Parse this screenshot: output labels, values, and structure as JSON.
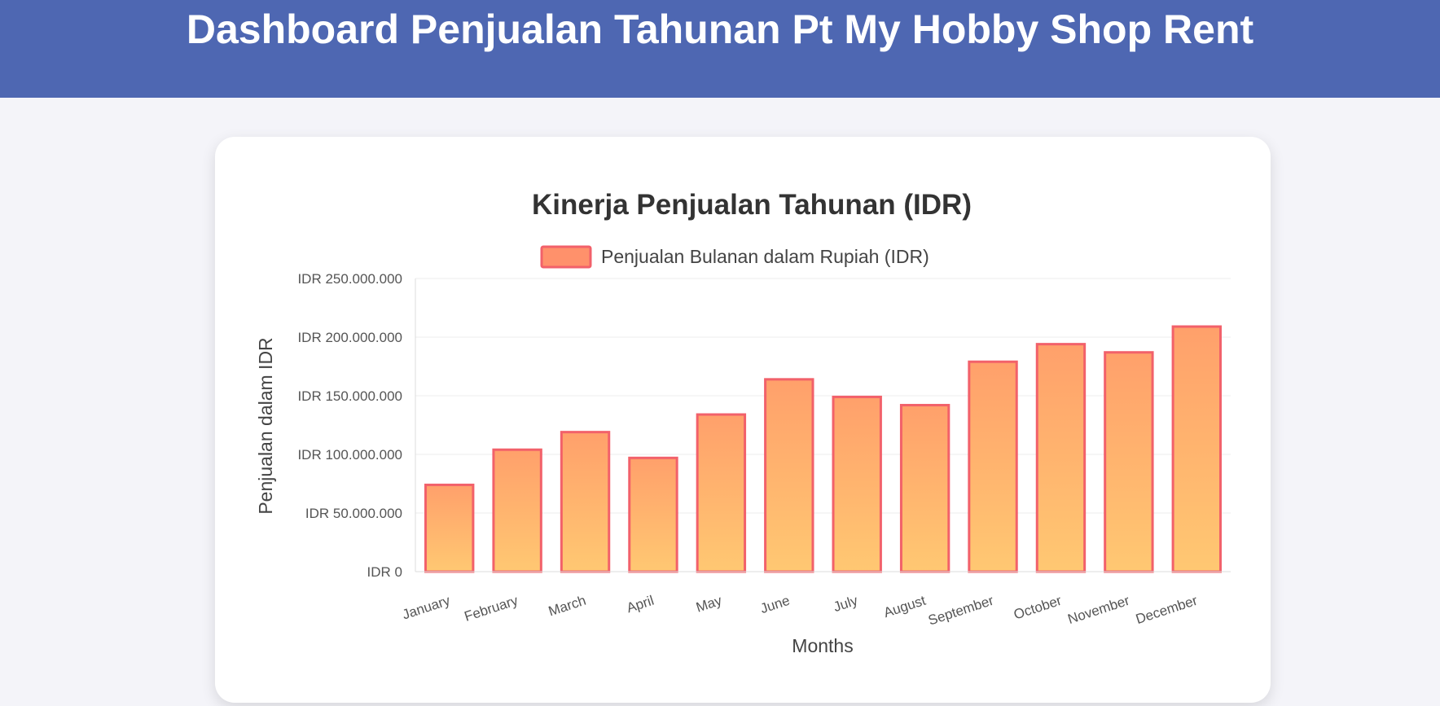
{
  "header": {
    "title": "Dashboard Penjualan Tahunan Pt My Hobby Shop Rent"
  },
  "colors": {
    "header_bg": "#4e67b2",
    "bar_top": "#ffa06b",
    "bar_bottom": "#ffc872",
    "bar_border": "#f2616a",
    "legend_fill": "#ff916b"
  },
  "chart_data": {
    "type": "bar",
    "title": "Kinerja Penjualan Tahunan (IDR)",
    "legend": {
      "position": "top",
      "entries": [
        "Penjualan Bulanan dalam Rupiah (IDR)"
      ]
    },
    "xlabel": "Months",
    "ylabel": "Penjualan dalam IDR",
    "ylim": [
      0,
      250000000
    ],
    "yticks": [
      0,
      50000000,
      100000000,
      150000000,
      200000000,
      250000000
    ],
    "ytick_labels": [
      "IDR 0",
      "IDR 50.000.000",
      "IDR 100.000.000",
      "IDR 150.000.000",
      "IDR 200.000.000",
      "IDR 250.000.000"
    ],
    "grid": true,
    "categories": [
      "January",
      "February",
      "March",
      "April",
      "May",
      "June",
      "July",
      "August",
      "September",
      "October",
      "November",
      "December"
    ],
    "series": [
      {
        "name": "Penjualan Bulanan dalam Rupiah (IDR)",
        "values": [
          74000000,
          104000000,
          119000000,
          97000000,
          134000000,
          164000000,
          149000000,
          142000000,
          179000000,
          194000000,
          187000000,
          209000000
        ]
      }
    ]
  }
}
